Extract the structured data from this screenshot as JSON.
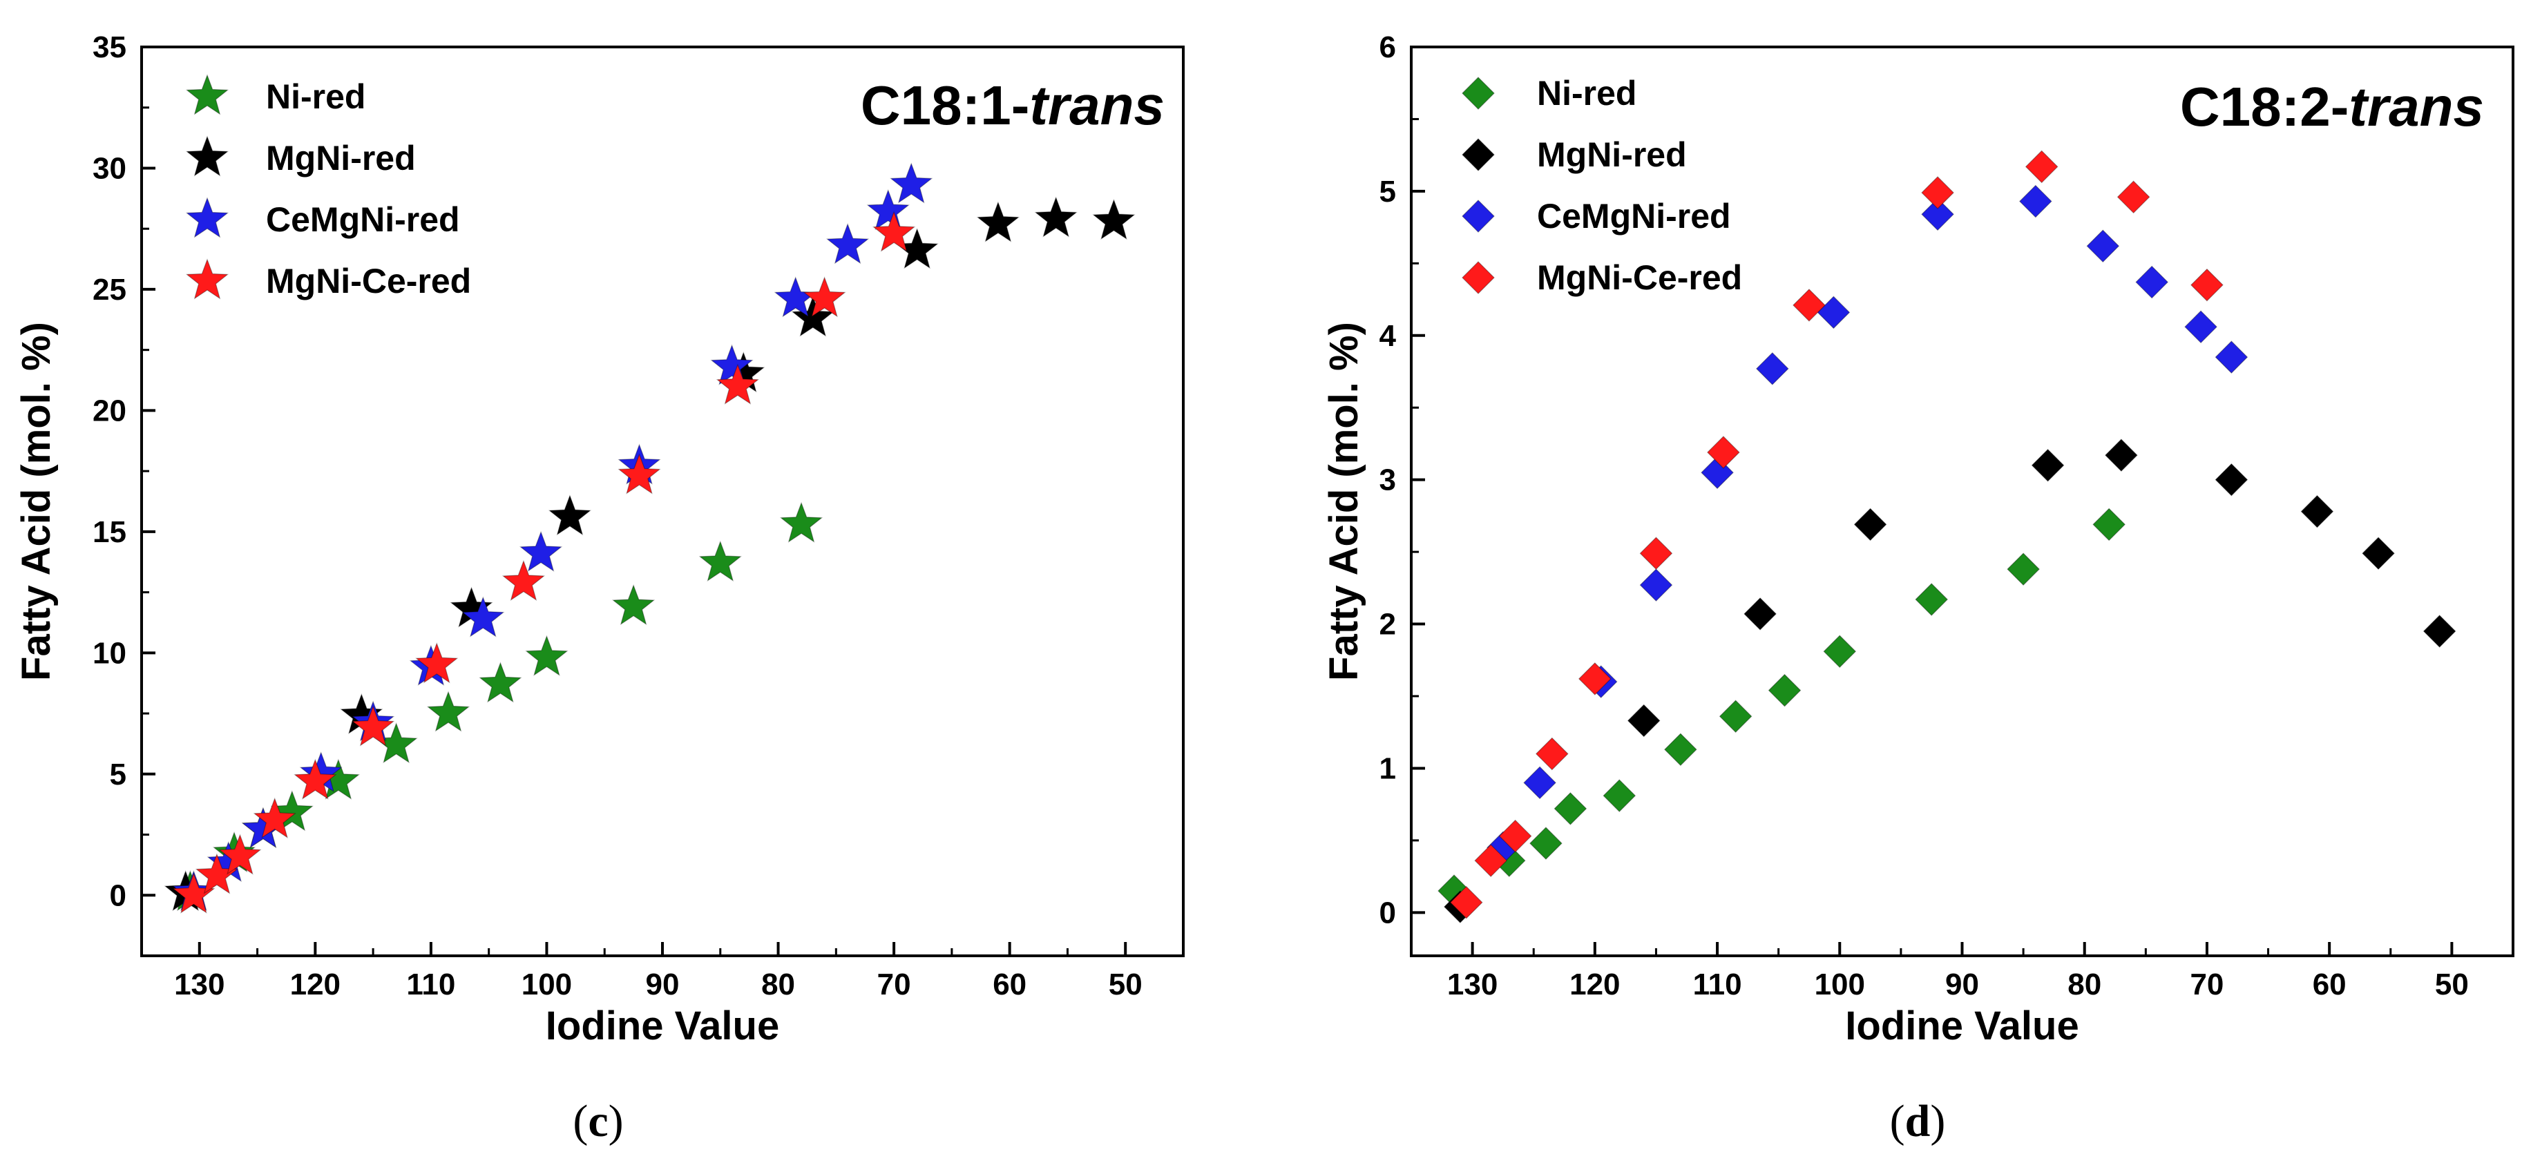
{
  "chart_data": [
    {
      "type": "scatter",
      "title_main": "C18:1-",
      "title_italic": "trans",
      "xlabel": "Iodine Value",
      "ylabel": "Fatty Acid (mol. %)",
      "xlim": [
        135,
        45
      ],
      "ylim": [
        -2.5,
        35
      ],
      "xticks": [
        130,
        120,
        110,
        100,
        90,
        80,
        70,
        60,
        50
      ],
      "yticks": [
        0,
        5,
        10,
        15,
        20,
        25,
        30,
        35
      ],
      "marker": "star",
      "panel_label": "c",
      "legend_position": "top-left",
      "series": [
        {
          "name": "Ni-red",
          "color": "#1a8c1a",
          "x": [
            130.8,
            127,
            124.5,
            122,
            118,
            113,
            108.5,
            104,
            100,
            92.5,
            85,
            78
          ],
          "y": [
            0.1,
            1.7,
            2.7,
            3.4,
            4.7,
            6.2,
            7.5,
            8.7,
            9.8,
            11.9,
            13.7,
            15.3
          ]
        },
        {
          "name": "MgNi-red",
          "color": "#000000",
          "x": [
            131.2,
            116,
            106.5,
            98,
            83,
            77,
            68,
            61,
            56,
            51
          ],
          "y": [
            0.1,
            7.4,
            11.8,
            15.6,
            21.5,
            23.8,
            26.6,
            27.7,
            27.9,
            27.8
          ],
          "label_offset": 0
        },
        {
          "name": "CeMgNi-red",
          "color": "#1f1fe6",
          "x": [
            130.5,
            127.5,
            124.5,
            119.5,
            115,
            110,
            105.5,
            100.5,
            92,
            84,
            78.5,
            74,
            70.5,
            68.5
          ],
          "y": [
            0.1,
            1.3,
            2.7,
            5.0,
            7.1,
            9.4,
            11.4,
            14.1,
            17.7,
            21.8,
            24.6,
            26.8,
            28.2,
            29.3
          ]
        },
        {
          "name": "MgNi-Ce-red",
          "color": "#ff1a1a",
          "x": [
            130.5,
            128.5,
            126.5,
            123.5,
            120,
            115,
            109.5,
            102,
            92,
            83.5,
            76,
            70
          ],
          "y": [
            0.0,
            0.8,
            1.6,
            3.1,
            4.7,
            6.9,
            9.5,
            12.9,
            17.3,
            21.0,
            24.6,
            27.3
          ]
        }
      ]
    },
    {
      "type": "scatter",
      "title_main": "C18:2-",
      "title_italic": "trans",
      "xlabel": "Iodine Value",
      "ylabel": "Fatty Acid (mol. %)",
      "xlim": [
        135,
        45
      ],
      "ylim": [
        -0.3,
        6
      ],
      "xticks": [
        130,
        120,
        110,
        100,
        90,
        80,
        70,
        60,
        50
      ],
      "yticks": [
        0,
        1,
        2,
        3,
        4,
        5,
        6
      ],
      "marker": "diamond",
      "panel_label": "d",
      "legend_position": "top-left",
      "series": [
        {
          "name": "Ni-red",
          "color": "#1a8c1a",
          "x": [
            131.5,
            127,
            124,
            122,
            118,
            113,
            108.5,
            104.5,
            100,
            92.5,
            85,
            78
          ],
          "y": [
            0.15,
            0.36,
            0.48,
            0.72,
            0.81,
            1.13,
            1.36,
            1.54,
            1.81,
            2.17,
            2.38,
            2.69
          ]
        },
        {
          "name": "MgNi-red",
          "color": "#000000",
          "x": [
            131,
            116,
            106.5,
            97.5,
            83,
            77,
            68,
            61,
            56,
            51
          ],
          "y": [
            0.04,
            1.33,
            2.07,
            2.69,
            3.1,
            3.17,
            3.0,
            2.78,
            2.49,
            1.95
          ]
        },
        {
          "name": "CeMgNi-red",
          "color": "#1f1fe6",
          "x": [
            127.5,
            124.5,
            119.5,
            115,
            110,
            105.5,
            100.5,
            92,
            84,
            78.5,
            74.5,
            70.5,
            68
          ],
          "y": [
            0.45,
            0.9,
            1.6,
            2.27,
            3.05,
            3.77,
            4.16,
            4.84,
            4.93,
            4.62,
            4.37,
            4.06,
            3.85
          ]
        },
        {
          "name": "MgNi-Ce-red",
          "color": "#ff1a1a",
          "x": [
            130.5,
            128.5,
            126.5,
            123.5,
            120,
            115,
            109.5,
            102.5,
            92,
            83.5,
            76,
            70
          ],
          "y": [
            0.07,
            0.36,
            0.53,
            1.1,
            1.62,
            2.49,
            3.19,
            4.21,
            4.99,
            5.17,
            4.96,
            4.35
          ]
        }
      ]
    }
  ]
}
